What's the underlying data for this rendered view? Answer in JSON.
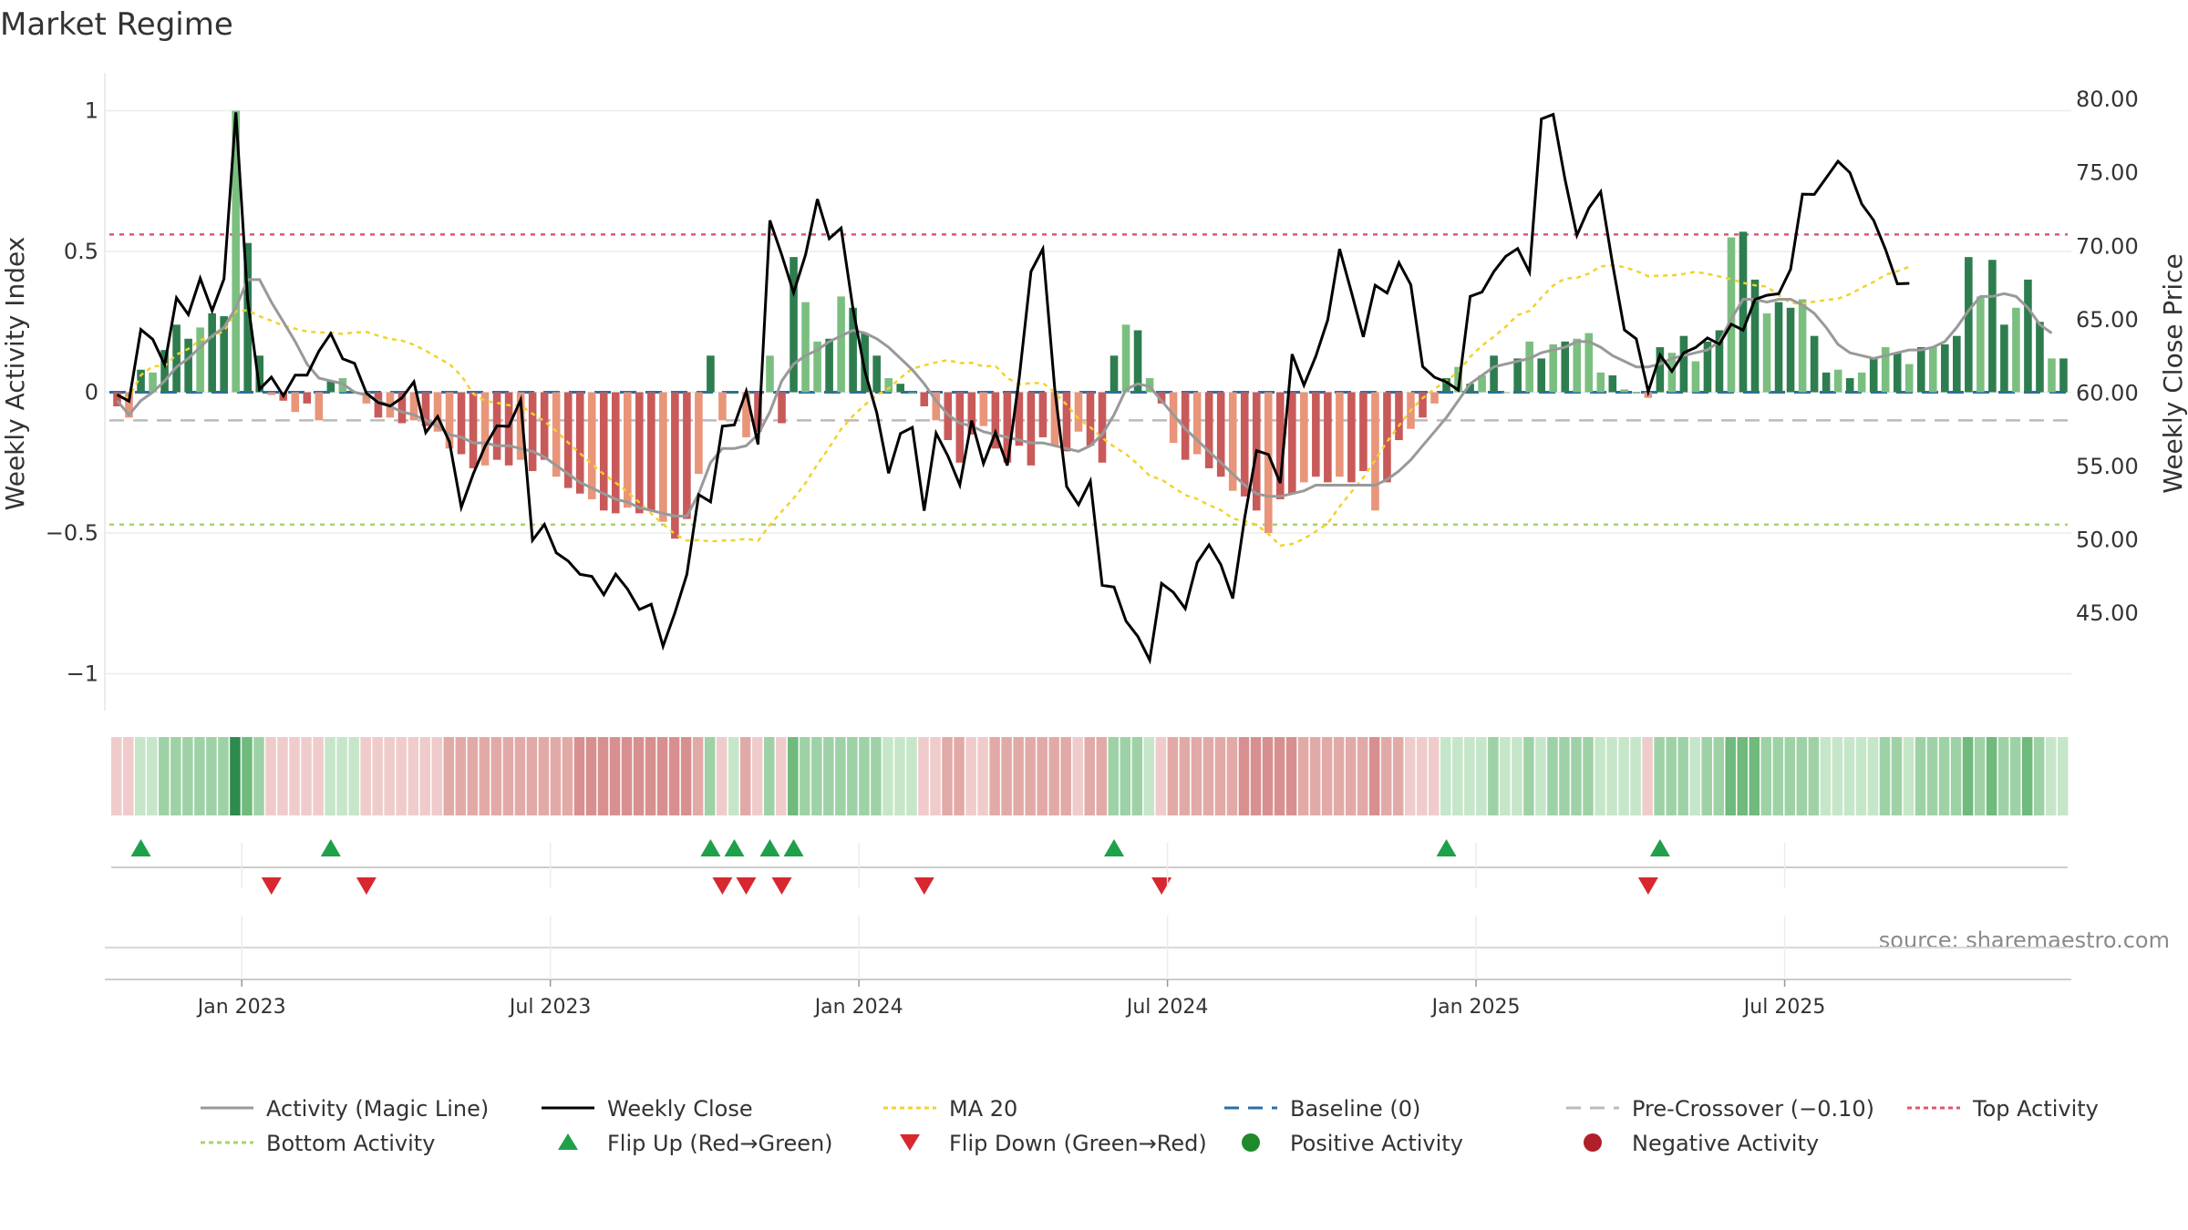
{
  "chart_data": {
    "type": "bar",
    "title": "Market Regime",
    "ylabel_left": "Weekly Activity Index",
    "ylabel_right": "Weekly Close Price",
    "left_ylim": [
      -1.05,
      1.05
    ],
    "right_ylim": [
      39.9,
      80.2
    ],
    "left_ticks": [
      1,
      0.5,
      0,
      -0.5,
      -1
    ],
    "left_tick_labels": [
      "1",
      "0.5",
      "0",
      "−0.5",
      "−1"
    ],
    "right_ticks": [
      80,
      75,
      70,
      65,
      60,
      55,
      50,
      45
    ],
    "right_tick_labels": [
      "80.00",
      "75.00",
      "70.00",
      "65.00",
      "60.00",
      "55.00",
      "50.00",
      "45.00"
    ],
    "x_start": "2022-10-17",
    "weeks": 155,
    "x_ticks": [
      {
        "label": "Jan 2023",
        "week": 11
      },
      {
        "label": "Jul 2023",
        "week": 37
      },
      {
        "label": "Jan 2024",
        "week": 63
      },
      {
        "label": "Jul 2024",
        "week": 89
      },
      {
        "label": "Jan 2025",
        "week": 115
      },
      {
        "label": "Jul 2025",
        "week": 141
      }
    ],
    "reference_lines": {
      "baseline": 0,
      "pre_crossover": -0.1,
      "top_activity": 0.56,
      "bottom_activity": -0.47
    },
    "activity": [
      -0.05,
      -0.09,
      0.08,
      0.07,
      0.15,
      0.24,
      0.19,
      0.23,
      0.28,
      0.27,
      1.0,
      0.53,
      0.13,
      -0.01,
      -0.03,
      -0.07,
      -0.04,
      -0.1,
      0.04,
      0.05,
      0.0,
      -0.04,
      -0.09,
      -0.09,
      -0.11,
      -0.1,
      -0.12,
      -0.14,
      -0.2,
      -0.22,
      -0.27,
      -0.26,
      -0.24,
      -0.26,
      -0.24,
      -0.28,
      -0.24,
      -0.3,
      -0.34,
      -0.36,
      -0.38,
      -0.42,
      -0.43,
      -0.41,
      -0.43,
      -0.42,
      -0.46,
      -0.52,
      -0.45,
      -0.29,
      0.13,
      -0.1,
      0.0,
      -0.16,
      -0.14,
      0.13,
      -0.11,
      0.48,
      0.32,
      0.18,
      0.19,
      0.34,
      0.3,
      0.21,
      0.13,
      0.05,
      0.03,
      0.0,
      -0.05,
      -0.1,
      -0.17,
      -0.25,
      -0.15,
      -0.12,
      -0.2,
      -0.25,
      -0.19,
      -0.26,
      -0.16,
      -0.19,
      -0.21,
      -0.14,
      -0.19,
      -0.25,
      0.13,
      0.24,
      0.22,
      0.05,
      -0.04,
      -0.18,
      -0.24,
      -0.22,
      -0.27,
      -0.3,
      -0.35,
      -0.37,
      -0.42,
      -0.5,
      -0.38,
      -0.36,
      -0.32,
      -0.3,
      -0.32,
      -0.3,
      -0.32,
      -0.28,
      -0.42,
      -0.32,
      -0.17,
      -0.13,
      -0.09,
      -0.04,
      0.05,
      0.09,
      0.03,
      0.06,
      0.13,
      0.0,
      0.12,
      0.18,
      0.12,
      0.17,
      0.18,
      0.19,
      0.21,
      0.07,
      0.06,
      0.01,
      0.0,
      -0.02,
      0.16,
      0.14,
      0.2,
      0.11,
      0.18,
      0.22,
      0.55,
      0.57,
      0.4,
      0.28,
      0.32,
      0.3,
      0.33,
      0.2,
      0.07,
      0.08,
      0.05,
      0.07,
      0.12,
      0.16,
      0.14,
      0.1,
      0.16,
      0.16,
      0.17,
      0.2,
      0.48,
      0.34,
      0.47,
      0.24,
      0.3,
      0.4,
      0.25,
      0.12,
      0.12
    ],
    "close": [
      59.88,
      59.44,
      64.32,
      63.65,
      61.93,
      66.48,
      65.34,
      67.81,
      65.61,
      67.78,
      79.12,
      66.29,
      60.25,
      61.08,
      59.81,
      61.22,
      61.22,
      62.85,
      64.05,
      62.33,
      62.02,
      59.99,
      59.35,
      59.11,
      59.67,
      60.76,
      57.3,
      58.39,
      56.67,
      52.21,
      54.48,
      56.37,
      57.76,
      57.72,
      59.52,
      49.96,
      51.04,
      49.1,
      48.55,
      47.64,
      47.5,
      46.25,
      47.65,
      46.64,
      45.24,
      45.6,
      42.74,
      45.04,
      47.63,
      53.07,
      52.58,
      57.74,
      57.82,
      60.12,
      56.49,
      71.76,
      69.41,
      66.84,
      69.42,
      73.21,
      70.52,
      71.24,
      65.75,
      61.47,
      58.65,
      54.53,
      57.24,
      57.65,
      51.98,
      57.26,
      55.7,
      53.73,
      58.12,
      55.19,
      57.31,
      55.06,
      60.98,
      68.28,
      69.82,
      60.31,
      53.62,
      52.38,
      53.99,
      46.89,
      46.77,
      44.45,
      43.4,
      41.79,
      47.02,
      46.41,
      45.3,
      48.45,
      49.65,
      48.29,
      45.99,
      51.47,
      56.07,
      55.81,
      53.86,
      62.64,
      60.53,
      62.5,
      64.98,
      69.81,
      66.86,
      63.82,
      67.34,
      66.81,
      68.88,
      67.37,
      61.81,
      61.07,
      60.75,
      60.2,
      66.58,
      66.88,
      68.27,
      69.31,
      69.84,
      68.23,
      78.67,
      78.98,
      74.54,
      70.74,
      72.6,
      73.72,
      68.8,
      64.3,
      63.69,
      60.09,
      62.59,
      61.47,
      62.74,
      63.1,
      63.75,
      63.33,
      64.69,
      64.28,
      66.37,
      66.66,
      66.76,
      68.43,
      73.55,
      73.53,
      74.66,
      75.79,
      75.01,
      72.87,
      71.77,
      69.78,
      67.44,
      67.47
    ],
    "magic_line": [
      -0.03,
      -0.08,
      -0.03,
      0.0,
      0.04,
      0.09,
      0.12,
      0.16,
      0.2,
      0.23,
      0.3,
      0.4,
      0.4,
      0.32,
      0.25,
      0.18,
      0.1,
      0.05,
      0.04,
      0.03,
      0.0,
      -0.01,
      -0.03,
      -0.05,
      -0.07,
      -0.08,
      -0.1,
      -0.12,
      -0.15,
      -0.16,
      -0.18,
      -0.18,
      -0.19,
      -0.19,
      -0.2,
      -0.21,
      -0.23,
      -0.26,
      -0.29,
      -0.32,
      -0.34,
      -0.36,
      -0.38,
      -0.39,
      -0.41,
      -0.42,
      -0.43,
      -0.44,
      -0.44,
      -0.36,
      -0.25,
      -0.2,
      -0.2,
      -0.19,
      -0.15,
      -0.07,
      0.04,
      0.1,
      0.13,
      0.15,
      0.18,
      0.2,
      0.22,
      0.21,
      0.19,
      0.16,
      0.12,
      0.08,
      0.03,
      -0.03,
      -0.08,
      -0.11,
      -0.12,
      -0.14,
      -0.15,
      -0.16,
      -0.17,
      -0.18,
      -0.18,
      -0.19,
      -0.2,
      -0.21,
      -0.19,
      -0.15,
      -0.08,
      0.01,
      0.03,
      0.02,
      -0.03,
      -0.08,
      -0.13,
      -0.17,
      -0.21,
      -0.25,
      -0.29,
      -0.33,
      -0.36,
      -0.37,
      -0.37,
      -0.36,
      -0.35,
      -0.33,
      -0.33,
      -0.33,
      -0.33,
      -0.33,
      -0.33,
      -0.31,
      -0.28,
      -0.24,
      -0.19,
      -0.14,
      -0.09,
      -0.03,
      0.03,
      0.06,
      0.09,
      0.1,
      0.11,
      0.12,
      0.14,
      0.15,
      0.16,
      0.18,
      0.18,
      0.16,
      0.13,
      0.11,
      0.09,
      0.09,
      0.1,
      0.12,
      0.13,
      0.14,
      0.15,
      0.18,
      0.26,
      0.33,
      0.33,
      0.32,
      0.33,
      0.33,
      0.31,
      0.28,
      0.23,
      0.17,
      0.14,
      0.13,
      0.12,
      0.13,
      0.14,
      0.15,
      0.15,
      0.16,
      0.18,
      0.23,
      0.29,
      0.34,
      0.34,
      0.35,
      0.34,
      0.3,
      0.24,
      0.21
    ]
  },
  "legend": {
    "magic_line": "Activity (Magic Line)",
    "weekly_close": "Weekly Close",
    "ma20": "MA 20",
    "baseline": "Baseline (0)",
    "pre_crossover": "Pre-Crossover (−0.10)",
    "top_activity": "Top Activity",
    "bottom_activity": "Bottom Activity",
    "flip_up": "Flip Up (Red→Green)",
    "flip_down": "Flip Down (Green→Red)",
    "positive": "Positive Activity",
    "negative": "Negative Activity"
  },
  "source": "source: sharemaestro.com",
  "colors": {
    "pos_dark": "#2e7d4f",
    "pos_light": "#7bbf80",
    "neg_dark": "#c95a5a",
    "neg_light": "#e8957a",
    "close": "#000000",
    "magic": "#999999",
    "ma20": "#f2d22e",
    "baseline": "#2a6fa8",
    "pre": "#bbbbbb",
    "top": "#e0566e",
    "bottom": "#a8d468",
    "up_marker": "#1fa04a",
    "down_marker": "#d7282f",
    "pos_dot": "#1e8a2a",
    "neg_dot": "#b0202a"
  }
}
